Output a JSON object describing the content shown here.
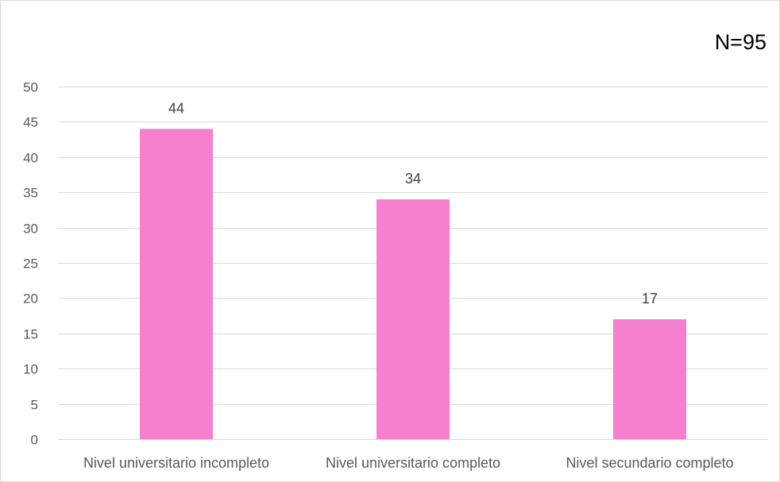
{
  "chart_data": {
    "type": "bar",
    "categories": [
      "Nivel universitario incompleto",
      "Nivel universitario completo",
      "Nivel secundario completo"
    ],
    "values": [
      44,
      34,
      17
    ],
    "data_labels": [
      "44",
      "34",
      "17"
    ],
    "annotation": "N=95",
    "title": "",
    "xlabel": "",
    "ylabel": "",
    "ylim": [
      0,
      50
    ],
    "yticks": [
      0,
      5,
      10,
      15,
      20,
      25,
      30,
      35,
      40,
      45,
      50
    ],
    "ytick_labels": [
      "0",
      "5",
      "10",
      "15",
      "20",
      "25",
      "30",
      "35",
      "40",
      "45",
      "50"
    ],
    "grid": true,
    "legend": "none",
    "bar_color": "#F77FD0"
  }
}
